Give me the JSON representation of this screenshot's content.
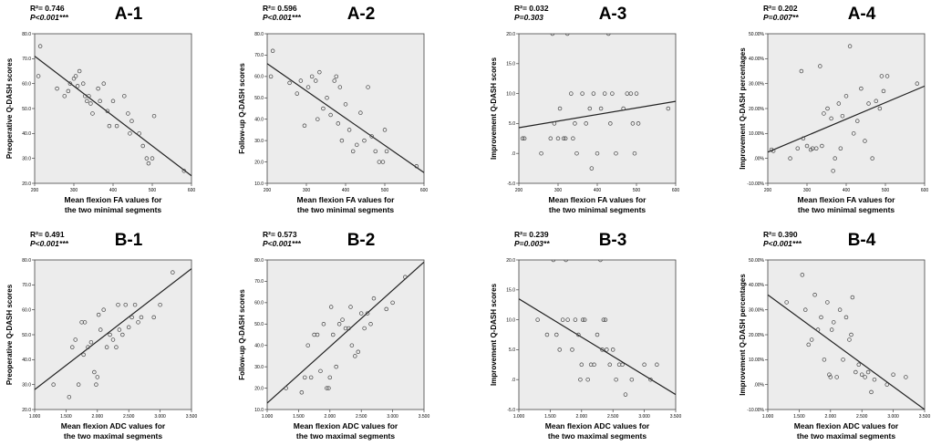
{
  "figure": {
    "style": {
      "plot_bg": "#ececec",
      "axis_color": "#444444",
      "line_color": "#222222",
      "point_color": "#444444",
      "text_color": "#000000"
    },
    "xlabels": {
      "fa": [
        "Mean flexion FA values for",
        "the two minimal segments"
      ],
      "adc": [
        "Mean flexion ADC values for",
        "the two maximal segments"
      ]
    }
  },
  "chart_data": [
    {
      "id": "A-1",
      "type": "scatter",
      "title": "A-1",
      "r2_text": "R²= 0.746",
      "p_text": "P<0.001***",
      "xlabel_key": "fa",
      "ylabel": "Preoperative Q-DASH scores",
      "xlim": [
        200,
        620
      ],
      "ylim": [
        20,
        80
      ],
      "xticks": [
        "200",
        "300",
        "400",
        "500",
        "600"
      ],
      "yticks": [
        "20.0",
        "30.0",
        "40.0",
        "50.0",
        "60.0",
        "70.0",
        "80.0"
      ],
      "fit": [
        [
          200,
          71
        ],
        [
          620,
          23
        ]
      ],
      "x": [
        210,
        215,
        260,
        280,
        290,
        295,
        305,
        310,
        315,
        320,
        330,
        335,
        340,
        345,
        350,
        355,
        370,
        375,
        385,
        395,
        400,
        410,
        420,
        440,
        450,
        455,
        460,
        480,
        490,
        500,
        505,
        515,
        520,
        600
      ],
      "y": [
        63,
        75,
        58,
        55,
        57,
        60,
        62,
        63,
        59,
        65,
        60,
        55,
        53,
        55,
        52,
        48,
        58,
        53,
        60,
        49,
        43,
        53,
        43,
        55,
        48,
        40,
        45,
        40,
        35,
        30,
        28,
        30,
        47,
        25
      ]
    },
    {
      "id": "A-2",
      "type": "scatter",
      "title": "A-2",
      "r2_text": "R²= 0.596",
      "p_text": "P<0.001***",
      "xlabel_key": "fa",
      "ylabel": "Follow-up Q-DASH scores",
      "xlim": [
        200,
        620
      ],
      "ylim": [
        10,
        80
      ],
      "xticks": [
        "200",
        "300",
        "400",
        "500",
        "600"
      ],
      "yticks": [
        "10.0",
        "20.0",
        "30.0",
        "40.0",
        "50.0",
        "60.0",
        "70.0",
        "80.0"
      ],
      "fit": [
        [
          200,
          66
        ],
        [
          620,
          15
        ]
      ],
      "x": [
        210,
        215,
        260,
        280,
        290,
        300,
        310,
        320,
        330,
        335,
        340,
        350,
        360,
        370,
        380,
        385,
        390,
        395,
        400,
        410,
        420,
        430,
        440,
        450,
        460,
        470,
        480,
        490,
        500,
        510,
        515,
        520,
        600
      ],
      "y": [
        60,
        72,
        57,
        52,
        58,
        37,
        55,
        60,
        58,
        40,
        62,
        45,
        50,
        42,
        58,
        60,
        38,
        55,
        30,
        47,
        35,
        25,
        28,
        43,
        30,
        55,
        32,
        25,
        20,
        20,
        35,
        25,
        18
      ]
    },
    {
      "id": "A-3",
      "type": "scatter",
      "title": "A-3",
      "r2_text": "R²= 0.032",
      "p_text": "P=0.303",
      "xlabel_key": "fa",
      "ylabel": "Improvement Q-DASH scores",
      "xlim": [
        200,
        620
      ],
      "ylim": [
        -5,
        20
      ],
      "xticks": [
        "200",
        "300",
        "400",
        "500",
        "600"
      ],
      "yticks": [
        "-5.0",
        ".0",
        "5.0",
        "10.0",
        "15.0",
        "20.0"
      ],
      "fit": [
        [
          200,
          4.3
        ],
        [
          620,
          8.7
        ]
      ],
      "x": [
        210,
        215,
        260,
        285,
        290,
        295,
        305,
        310,
        320,
        325,
        330,
        340,
        345,
        350,
        355,
        370,
        380,
        390,
        395,
        400,
        410,
        420,
        430,
        440,
        445,
        450,
        460,
        480,
        490,
        500,
        505,
        510,
        515,
        520,
        600
      ],
      "y": [
        2.5,
        2.5,
        0,
        2.5,
        20,
        5,
        2.5,
        7.5,
        2.5,
        2.5,
        20,
        10,
        2.5,
        5,
        0,
        10,
        5,
        7.5,
        -2.5,
        10,
        0,
        7.5,
        10,
        20,
        5,
        10,
        0,
        7.5,
        10,
        10,
        5,
        0,
        10,
        5,
        7.5
      ]
    },
    {
      "id": "A-4",
      "type": "scatter",
      "title": "A-4",
      "r2_text": "R²= 0.202",
      "p_text": "P=0.007**",
      "xlabel_key": "fa",
      "ylabel": "Improvement Q-DASH percentages",
      "xlim": [
        200,
        620
      ],
      "ylim": [
        -10,
        50
      ],
      "xticks": [
        "200",
        "300",
        "400",
        "500",
        "600"
      ],
      "yticks": [
        "-10.00%",
        ".00%",
        "10.00%",
        "20.00%",
        "30.00%",
        "40.00%",
        "50.00%"
      ],
      "fit": [
        [
          200,
          2.5
        ],
        [
          620,
          29
        ]
      ],
      "x": [
        210,
        215,
        260,
        280,
        290,
        295,
        305,
        315,
        320,
        330,
        340,
        345,
        350,
        360,
        370,
        375,
        380,
        390,
        395,
        400,
        410,
        420,
        430,
        440,
        450,
        460,
        470,
        480,
        490,
        500,
        505,
        510,
        520,
        600
      ],
      "y": [
        3.5,
        3,
        0,
        4,
        35,
        8,
        5,
        3.5,
        4,
        4,
        37,
        5,
        18,
        20,
        16,
        -5,
        0,
        22,
        4,
        17,
        25,
        45,
        10,
        15,
        28,
        7,
        22,
        0,
        23,
        20,
        33,
        27,
        33,
        30
      ]
    },
    {
      "id": "B-1",
      "type": "scatter",
      "title": "B-1",
      "r2_text": "R²= 0.491",
      "p_text": "P<0.001***",
      "xlabel_key": "adc",
      "ylabel": "Preoperative Q-DASH scores",
      "xlim": [
        1.0,
        3.5
      ],
      "ylim": [
        20,
        80
      ],
      "xticks": [
        "1.000",
        "1.500",
        "2.000",
        "2.500",
        "3.000",
        "3.500"
      ],
      "yticks": [
        "20.0",
        "30.0",
        "40.0",
        "50.0",
        "60.0",
        "70.0",
        "80.0"
      ],
      "fit": [
        [
          1.0,
          28
        ],
        [
          3.5,
          76.5
        ]
      ],
      "x": [
        1.3,
        1.55,
        1.6,
        1.65,
        1.7,
        1.75,
        1.78,
        1.8,
        1.85,
        1.9,
        1.95,
        1.98,
        2.0,
        2.02,
        2.05,
        2.1,
        2.15,
        2.2,
        2.25,
        2.3,
        2.33,
        2.35,
        2.4,
        2.45,
        2.5,
        2.55,
        2.6,
        2.65,
        2.7,
        2.9,
        3.0,
        3.2
      ],
      "y": [
        30,
        25,
        45,
        48,
        30,
        55,
        42,
        55,
        45,
        47,
        35,
        30,
        33,
        58,
        52,
        60,
        45,
        50,
        48,
        45,
        62,
        52,
        50,
        62,
        53,
        57,
        62,
        55,
        57,
        57,
        62,
        75
      ]
    },
    {
      "id": "B-2",
      "type": "scatter",
      "title": "B-2",
      "r2_text": "R²= 0.573",
      "p_text": "P<0.001***",
      "xlabel_key": "adc",
      "ylabel": "Follow-up Q-DASH scores",
      "xlim": [
        1.0,
        3.5
      ],
      "ylim": [
        10,
        80
      ],
      "xticks": [
        "1.000",
        "1.500",
        "2.000",
        "2.500",
        "3.000",
        "3.500"
      ],
      "yticks": [
        "10.0",
        "20.0",
        "30.0",
        "40.0",
        "50.0",
        "60.0",
        "70.0",
        "80.0"
      ],
      "fit": [
        [
          1.0,
          13
        ],
        [
          3.5,
          79
        ]
      ],
      "x": [
        1.3,
        1.55,
        1.6,
        1.65,
        1.7,
        1.75,
        1.8,
        1.85,
        1.9,
        1.95,
        1.98,
        2.0,
        2.02,
        2.05,
        2.1,
        2.15,
        2.2,
        2.25,
        2.3,
        2.33,
        2.35,
        2.4,
        2.45,
        2.5,
        2.55,
        2.6,
        2.65,
        2.7,
        2.9,
        3.0,
        3.2
      ],
      "y": [
        20,
        18,
        25,
        40,
        25,
        45,
        45,
        28,
        50,
        20,
        20,
        25,
        58,
        45,
        30,
        50,
        52,
        48,
        48,
        58,
        40,
        35,
        37,
        55,
        48,
        55,
        50,
        62,
        57,
        60,
        72
      ]
    },
    {
      "id": "B-3",
      "type": "scatter",
      "title": "B-3",
      "r2_text": "R²= 0.239",
      "p_text": "P=0.003**",
      "xlabel_key": "adc",
      "ylabel": "Improvement Q-DASH scores",
      "xlim": [
        1.0,
        3.5
      ],
      "ylim": [
        -5,
        20
      ],
      "xticks": [
        "1.000",
        "1.500",
        "2.000",
        "2.500",
        "3.000",
        "3.500"
      ],
      "yticks": [
        "-5.0",
        ".0",
        "5.0",
        "10.0",
        "15.0",
        "20.0"
      ],
      "fit": [
        [
          1.0,
          13.5
        ],
        [
          3.5,
          -2.5
        ]
      ],
      "x": [
        1.3,
        1.45,
        1.55,
        1.6,
        1.65,
        1.7,
        1.75,
        1.78,
        1.85,
        1.9,
        1.95,
        1.98,
        2.0,
        2.02,
        2.05,
        2.1,
        2.15,
        2.2,
        2.25,
        2.3,
        2.33,
        2.35,
        2.38,
        2.4,
        2.45,
        2.5,
        2.55,
        2.6,
        2.65,
        2.7,
        2.8,
        3.0,
        3.1,
        3.2
      ],
      "y": [
        10,
        7.5,
        20,
        7.5,
        5,
        10,
        20,
        10,
        5,
        10,
        7.5,
        0,
        2.5,
        10,
        10,
        0,
        2.5,
        2.5,
        7.5,
        20,
        5,
        10,
        10,
        5,
        2.5,
        5,
        0,
        2.5,
        2.5,
        -2.5,
        0,
        2.5,
        0,
        2.5
      ]
    },
    {
      "id": "B-4",
      "type": "scatter",
      "title": "B-4",
      "r2_text": "R²= 0.390",
      "p_text": "P<0.001***",
      "xlabel_key": "adc",
      "ylabel": "Improvement Q-DASH percentages",
      "xlim": [
        1.0,
        3.5
      ],
      "ylim": [
        -10,
        50
      ],
      "xticks": [
        "1.000",
        "1.500",
        "2.000",
        "2.500",
        "3.000",
        "3.500"
      ],
      "yticks": [
        "-10.00%",
        ".00%",
        "10.00%",
        "20.00%",
        "30.00%",
        "40.00%",
        "50.00%"
      ],
      "fit": [
        [
          1.0,
          36
        ],
        [
          3.5,
          -10
        ]
      ],
      "x": [
        1.3,
        1.55,
        1.6,
        1.65,
        1.7,
        1.75,
        1.8,
        1.85,
        1.9,
        1.95,
        1.98,
        2.0,
        2.02,
        2.05,
        2.1,
        2.15,
        2.2,
        2.25,
        2.3,
        2.33,
        2.35,
        2.4,
        2.45,
        2.5,
        2.55,
        2.6,
        2.65,
        2.7,
        2.9,
        3.0,
        3.2
      ],
      "y": [
        33,
        44,
        30,
        16,
        18,
        36,
        22,
        27,
        10,
        33,
        4,
        3,
        22,
        25,
        3,
        30,
        10,
        27,
        18,
        20,
        35,
        5,
        8,
        4,
        3,
        5,
        -3,
        2,
        0,
        4,
        3
      ]
    }
  ]
}
